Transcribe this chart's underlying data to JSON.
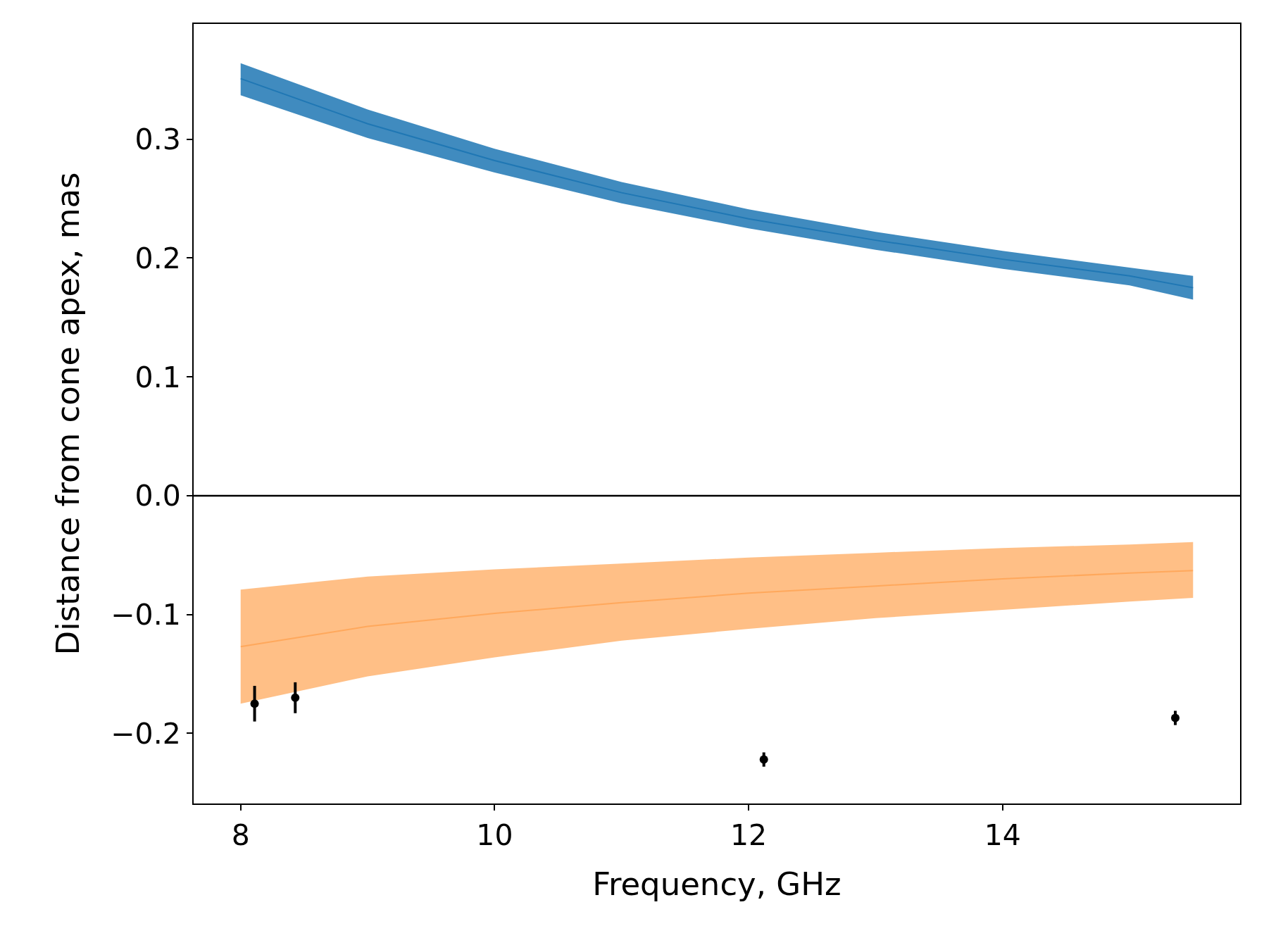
{
  "chart_data": {
    "type": "line",
    "xlabel": "Frequency, GHz",
    "ylabel": "Distance from cone apex, mas",
    "xlim": [
      7.63,
      15.87
    ],
    "ylim": [
      -0.259,
      0.397
    ],
    "xticks": [
      8,
      10,
      12,
      14
    ],
    "yticks": [
      {
        "value": -0.2,
        "label": "−0.2"
      },
      {
        "value": -0.1,
        "label": "−0.1"
      },
      {
        "value": 0,
        "label": "0.0"
      },
      {
        "value": 0.1,
        "label": "0.1"
      },
      {
        "value": 0.2,
        "label": "0.2"
      },
      {
        "value": 0.3,
        "label": "0.3"
      }
    ],
    "grid": false,
    "ref_lines": [
      {
        "axis": "y",
        "value": 0,
        "color": "#000000",
        "line_style": "solid"
      }
    ],
    "series": [
      {
        "color": "#1f77b4",
        "x": [
          8,
          9,
          10,
          11,
          12,
          13,
          14,
          15,
          15.5
        ],
        "values": [
          0.351,
          0.313,
          0.282,
          0.255,
          0.233,
          0.215,
          0.199,
          0.185,
          0.175
        ],
        "lower": [
          0.337,
          0.301,
          0.272,
          0.246,
          0.225,
          0.207,
          0.191,
          0.177,
          0.165
        ],
        "upper": [
          0.364,
          0.325,
          0.292,
          0.264,
          0.241,
          0.222,
          0.206,
          0.192,
          0.185
        ]
      },
      {
        "color": "#ff7f0e",
        "x": [
          8,
          9,
          10,
          11,
          12,
          13,
          14,
          15,
          15.5
        ],
        "values": [
          -0.127,
          -0.11,
          -0.099,
          -0.09,
          -0.082,
          -0.076,
          -0.07,
          -0.065,
          -0.063
        ],
        "lower": [
          -0.175,
          -0.152,
          -0.136,
          -0.122,
          -0.112,
          -0.103,
          -0.096,
          -0.089,
          -0.086
        ],
        "upper": [
          -0.079,
          -0.068,
          -0.062,
          -0.057,
          -0.052,
          -0.048,
          -0.044,
          -0.041,
          -0.039
        ]
      },
      {
        "type": "scatter",
        "color": "#000000",
        "marker": "circle",
        "x": [
          8.11,
          8.43,
          12.12,
          15.36
        ],
        "values": [
          -0.175,
          -0.17,
          -0.222,
          -0.187
        ],
        "errors": [
          0.015,
          0.013,
          0.006,
          0.006
        ]
      }
    ]
  }
}
